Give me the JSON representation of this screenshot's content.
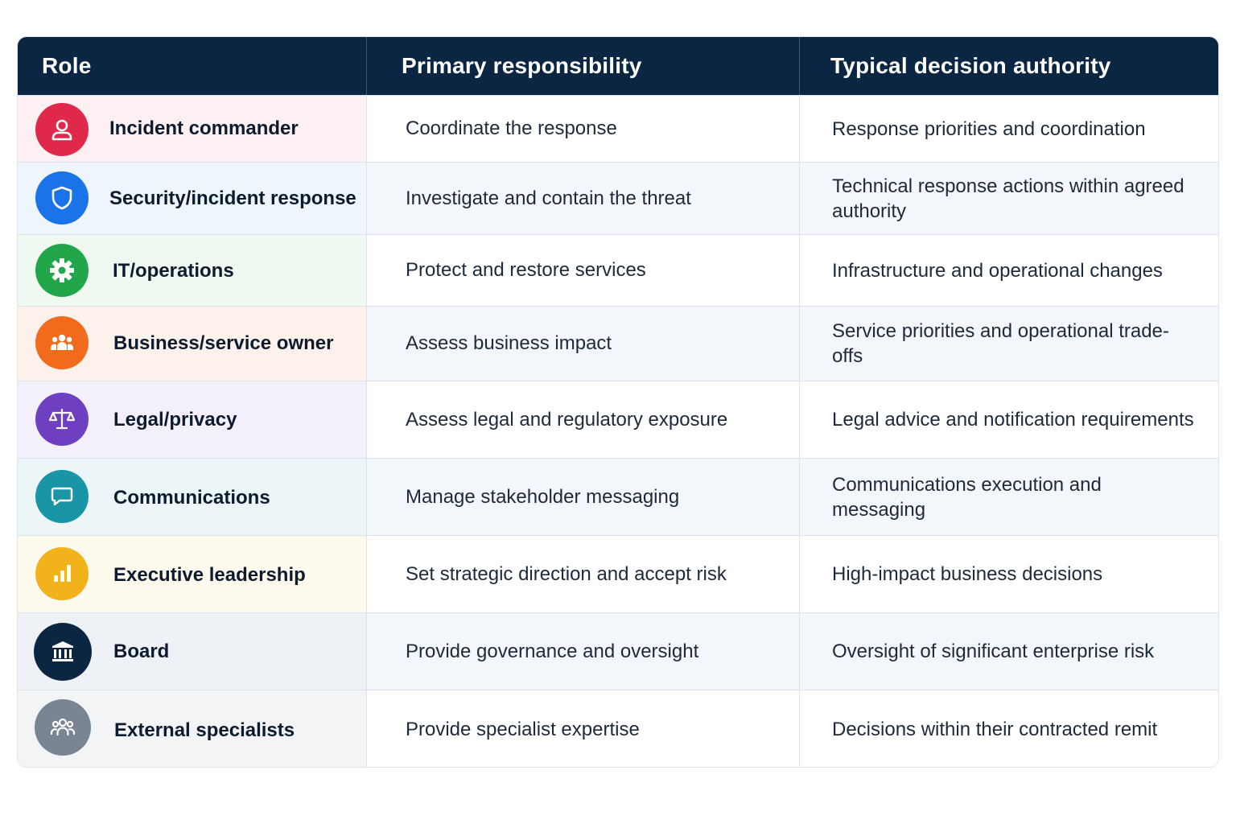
{
  "header": {
    "role": "Role",
    "responsibility": "Primary responsibility",
    "authority": "Typical decision authority"
  },
  "rows": [
    {
      "role": "Incident commander",
      "responsibility": "Coordinate the response",
      "authority": "Response priorities and coordination",
      "icon": "user-icon",
      "color": "#e0294a",
      "tint": "#fdf0f2"
    },
    {
      "role": "Security/incident response",
      "responsibility": "Investigate and contain the threat",
      "authority": "Technical response actions within agreed authority",
      "icon": "shield-icon",
      "color": "#1a73e8",
      "tint": "#eef5fd"
    },
    {
      "role": "IT/operations",
      "responsibility": "Protect and restore services",
      "authority": "Infrastructure and operational changes",
      "icon": "gear-icon",
      "color": "#22a64a",
      "tint": "#eff8f1"
    },
    {
      "role": "Business/service owner",
      "responsibility": "Assess business impact",
      "authority": "Service priorities and operational trade-offs",
      "icon": "people-icon",
      "color": "#f26a1b",
      "tint": "#fdf1ec"
    },
    {
      "role": "Legal/privacy",
      "responsibility": "Assess legal and regulatory exposure",
      "authority": "Legal advice and notification requirements",
      "icon": "scales-icon",
      "color": "#6f3fc2",
      "tint": "#f3f0fb"
    },
    {
      "role": "Communications",
      "responsibility": "Manage stakeholder messaging",
      "authority": "Communications execution and messaging",
      "icon": "chat-bubble-icon",
      "color": "#1a95a8",
      "tint": "#ecf6f8"
    },
    {
      "role": "Executive leadership",
      "responsibility": "Set strategic direction and accept risk",
      "authority": "High-impact business decisions",
      "icon": "bar-chart-icon",
      "color": "#f2b21b",
      "tint": "#fefaee"
    },
    {
      "role": "Board",
      "responsibility": "Provide governance and oversight",
      "authority": "Oversight of significant enterprise risk",
      "icon": "building-icon",
      "color": "#0b2642",
      "tint": "#eef2f6"
    },
    {
      "role": "External specialists",
      "responsibility": "Provide specialist expertise",
      "authority": "Decisions within their contracted remit",
      "icon": "group-icon",
      "color": "#7a8594",
      "tint": "#f2f4f6"
    }
  ]
}
